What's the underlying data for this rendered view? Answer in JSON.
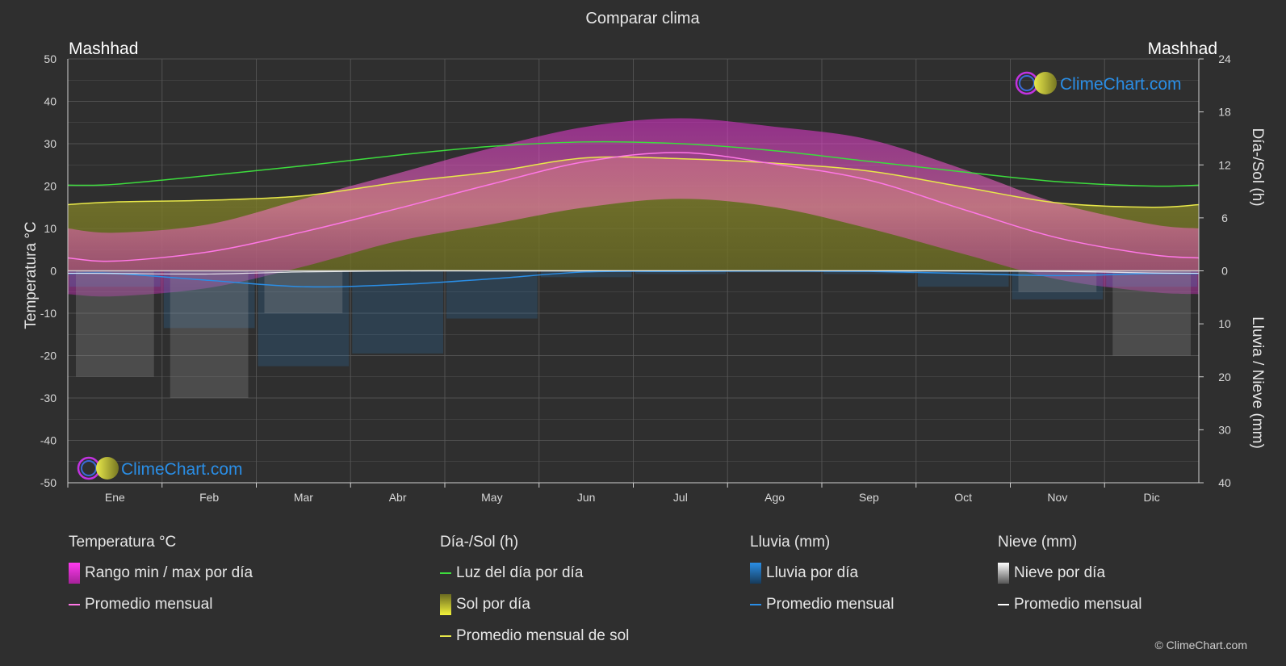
{
  "title": "Comparar clima",
  "location_left": "Mashhad",
  "location_right": "Mashhad",
  "left_axis_label": "Temperatura °C",
  "right_axis_top_label": "Día-/Sol (h)",
  "right_axis_bottom_label": "Lluvia / Nieve (mm)",
  "logo_text": "ClimeChart.com",
  "copyright": "© ClimeChart.com",
  "colors": {
    "background": "#2f2f2f",
    "grid": "#5a5a5a",
    "daylight": "#3ddc3d",
    "sun_avg": "#e8e84a",
    "sun_fill": "#8a8a2a",
    "temp_avg": "#ff77e6",
    "temp_range": "#e22fd2",
    "rain": "#2a8ee6",
    "snow": "#ffffff",
    "logo_text": "#2a8ee6"
  },
  "legend": {
    "temperature": {
      "title": "Temperatura °C",
      "items": [
        {
          "label": "Rango min / max por día",
          "icon": "magenta-gradient-box"
        },
        {
          "label": "Promedio mensual",
          "icon": "pink-line"
        }
      ]
    },
    "sun": {
      "title": "Día-/Sol (h)",
      "items": [
        {
          "label": "Luz del día por día",
          "icon": "green-line"
        },
        {
          "label": "Sol por día",
          "icon": "yellow-gradient-box"
        },
        {
          "label": "Promedio mensual de sol",
          "icon": "yellow-line"
        }
      ]
    },
    "rain": {
      "title": "Lluvia (mm)",
      "items": [
        {
          "label": "Lluvia por día",
          "icon": "blue-gradient-box"
        },
        {
          "label": "Promedio mensual",
          "icon": "blue-line"
        }
      ]
    },
    "snow": {
      "title": "Nieve (mm)",
      "items": [
        {
          "label": "Nieve por día",
          "icon": "white-gradient-box"
        },
        {
          "label": "Promedio mensual",
          "icon": "white-line"
        }
      ]
    }
  },
  "chart_data": {
    "type": "area",
    "title": "Comparar clima",
    "categories": [
      "Ene",
      "Feb",
      "Mar",
      "Abr",
      "May",
      "Jun",
      "Jul",
      "Ago",
      "Sep",
      "Oct",
      "Nov",
      "Dic"
    ],
    "y_left": {
      "label": "Temperatura °C",
      "lim": [
        -50,
        50
      ],
      "ticks": [
        50,
        40,
        30,
        20,
        10,
        0,
        -10,
        -20,
        -30,
        -40,
        -50
      ]
    },
    "y_right_top": {
      "label": "Día-/Sol (h)",
      "lim": [
        0,
        24
      ],
      "ticks": [
        24,
        18,
        12,
        6,
        0
      ]
    },
    "y_right_bottom": {
      "label": "Lluvia / Nieve (mm)",
      "lim": [
        0,
        40
      ],
      "ticks": [
        0,
        10,
        20,
        30,
        40
      ]
    },
    "grid": true,
    "series": [
      {
        "name": "Luz del día por día",
        "axis": "hours",
        "values": [
          9.8,
          10.8,
          11.9,
          13.1,
          14.1,
          14.6,
          14.4,
          13.6,
          12.4,
          11.2,
          10.1,
          9.6
        ]
      },
      {
        "name": "Promedio mensual de sol",
        "axis": "hours",
        "values": [
          7.8,
          8.0,
          8.5,
          10.0,
          11.2,
          12.8,
          12.7,
          12.2,
          11.3,
          9.5,
          7.7,
          7.2
        ]
      },
      {
        "name": "Promedio mensual",
        "kind": "temperature",
        "axis": "temp",
        "values": [
          2.3,
          4.5,
          9.2,
          14.7,
          20.5,
          25.8,
          27.9,
          25.2,
          21.4,
          14.5,
          7.8,
          3.8
        ]
      },
      {
        "name": "Rango min / max por día",
        "axis": "temp",
        "min": [
          -6,
          -4,
          1,
          7,
          11,
          15,
          17,
          15,
          10,
          4,
          -2,
          -5
        ],
        "max": [
          9,
          11,
          17,
          23,
          29,
          34,
          36,
          34,
          31,
          24,
          16,
          11
        ]
      },
      {
        "name": "Promedio mensual",
        "kind": "rain",
        "axis": "mm",
        "values": [
          0.5,
          1.8,
          3.0,
          2.6,
          1.5,
          0.2,
          0.1,
          0.0,
          0.1,
          0.5,
          0.9,
          0.5
        ]
      },
      {
        "name": "Promedio mensual",
        "kind": "snow",
        "axis": "mm",
        "values": [
          0.5,
          0.6,
          0.2,
          0.0,
          0.0,
          0.0,
          0.0,
          0.0,
          0.0,
          0.0,
          0.1,
          0.4
        ]
      }
    ]
  }
}
